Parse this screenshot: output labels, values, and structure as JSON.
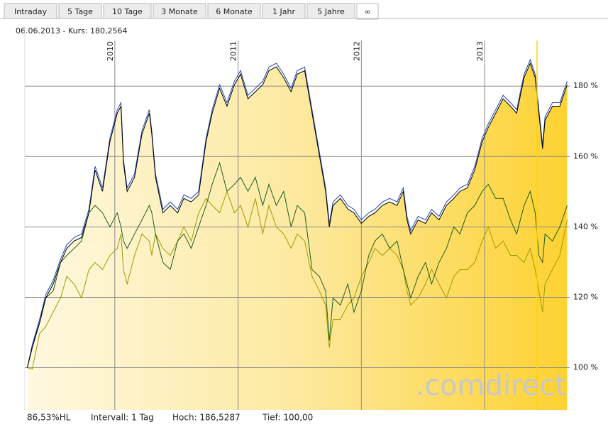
{
  "tabs": [
    "Intraday",
    "5 Tage",
    "10 Tage",
    "3 Monate",
    "6 Monate",
    "1 Jahr",
    "5 Jahre",
    "∞"
  ],
  "active_tab": 7,
  "header": "06.06.2013  -  Kurs: 180,2564",
  "footer": [
    "86,53%HL",
    "Intervall: 1 Tag",
    "Hoch: 186,5287",
    "Tief:  100,00"
  ],
  "watermark": ".comdirect",
  "chart_data": {
    "type": "line",
    "x": [
      2009.29,
      2009.33,
      2009.39,
      2009.44,
      2009.5,
      2009.56,
      2009.61,
      2009.67,
      2009.73,
      2009.79,
      2009.84,
      2009.9,
      2009.96,
      2010.02,
      2010.05,
      2010.07,
      2010.1,
      2010.16,
      2010.22,
      2010.28,
      2010.3,
      2010.33,
      2010.39,
      2010.45,
      2010.51,
      2010.56,
      2010.62,
      2010.68,
      2010.74,
      2010.79,
      2010.85,
      2010.91,
      2010.97,
      2011.02,
      2011.08,
      2011.14,
      2011.2,
      2011.25,
      2011.31,
      2011.37,
      2011.43,
      2011.48,
      2011.54,
      2011.6,
      2011.66,
      2011.71,
      2011.74,
      2011.77,
      2011.83,
      2011.89,
      2011.94,
      2012.0,
      2012.06,
      2012.11,
      2012.17,
      2012.23,
      2012.29,
      2012.34,
      2012.37,
      2012.4,
      2012.46,
      2012.52,
      2012.57,
      2012.63,
      2012.69,
      2012.75,
      2012.8,
      2012.86,
      2012.92,
      2012.98,
      2013.03,
      2013.09,
      2013.15,
      2013.21,
      2013.26,
      2013.32,
      2013.37,
      2013.41,
      2013.44,
      2013.47,
      2013.49,
      2013.55,
      2013.61,
      2013.67
    ],
    "series": [
      {
        "color": "#000000",
        "area": true,
        "values": [
          100,
          105.7,
          112.7,
          119.8,
          123.8,
          129.9,
          133.9,
          136,
          137,
          144,
          156.2,
          150.1,
          164.2,
          172.3,
          174.3,
          158.2,
          150.1,
          154.1,
          166.3,
          172.3,
          166.3,
          154.1,
          144,
          146.1,
          144,
          148.1,
          147.1,
          149.1,
          164.2,
          172.3,
          179.4,
          174.3,
          180.4,
          183.4,
          176.4,
          178.4,
          180.4,
          184.4,
          185.5,
          182.4,
          178.4,
          183.4,
          184.4,
          172.3,
          160.2,
          150.1,
          140,
          146.1,
          148.1,
          145.1,
          144,
          141,
          143,
          144,
          146.1,
          147.1,
          146.1,
          150.1,
          142,
          138,
          142,
          141,
          144,
          142,
          146.1,
          148.1,
          150.1,
          151.1,
          156.2,
          164.2,
          168.3,
          172.3,
          176.4,
          174.3,
          172.3,
          182.4,
          186.5,
          182.4,
          172.3,
          162.2,
          170.3,
          174.3,
          174.3,
          180.4
        ]
      },
      {
        "color": "#1f45b0",
        "values": [
          100,
          106.5,
          113.7,
          120.8,
          124.8,
          130.9,
          134.9,
          137,
          138,
          145,
          157.2,
          151.1,
          165.2,
          173.3,
          175.3,
          159.2,
          151.1,
          155.1,
          167.3,
          173.3,
          167.3,
          155.1,
          145,
          147.1,
          145,
          149.1,
          148.1,
          150.1,
          165.2,
          173.3,
          180.4,
          175.3,
          181.4,
          184.4,
          177.4,
          179.4,
          181.4,
          185.4,
          186.5,
          183.4,
          179.4,
          184.4,
          185.4,
          173.3,
          161.2,
          151.1,
          141,
          147.1,
          149.1,
          146.1,
          145,
          142,
          144,
          145,
          147.1,
          148.1,
          147.1,
          151.1,
          143,
          139,
          143,
          142,
          145,
          143,
          147.1,
          149.1,
          151.1,
          152.1,
          157.2,
          165.2,
          169.3,
          173.3,
          177.4,
          175.3,
          173.3,
          183.4,
          187.5,
          183.4,
          173.3,
          163.2,
          171.3,
          175.3,
          175.3,
          181.4
        ]
      },
      {
        "color": "#1b5e20",
        "values": [
          100,
          105.7,
          113.7,
          119.8,
          121.8,
          129.9,
          131.9,
          133.9,
          136,
          144,
          146.1,
          144,
          140,
          144,
          140,
          136,
          133.9,
          138,
          142,
          146.1,
          144,
          138,
          129.9,
          127.9,
          136,
          138,
          133.9,
          140,
          146.1,
          152.1,
          158.2,
          150.1,
          152.1,
          154.1,
          150.1,
          154.1,
          146.1,
          152.1,
          146.1,
          150.1,
          140,
          146.1,
          144,
          127.9,
          125.9,
          121.8,
          107.7,
          119.8,
          117.8,
          123.8,
          115.8,
          121.8,
          131.9,
          136,
          138,
          133.9,
          136,
          127.9,
          123.8,
          119.8,
          125.9,
          129.9,
          123.8,
          129.9,
          133.9,
          140,
          138,
          144,
          146.1,
          150.1,
          152.1,
          148.1,
          148.1,
          142,
          138,
          146.1,
          150.1,
          144,
          131.9,
          129.9,
          138,
          136,
          140,
          146.1
        ]
      },
      {
        "color": "#9e9c00",
        "values": [
          100,
          99.6,
          109.7,
          111.7,
          115.8,
          119.8,
          125.9,
          123.8,
          119.8,
          127.9,
          129.9,
          127.9,
          131.9,
          133.9,
          138,
          127.9,
          123.8,
          131.9,
          138,
          136,
          131.9,
          138,
          133.9,
          131.9,
          136,
          140,
          136,
          144,
          148.1,
          146.1,
          144,
          150.1,
          144,
          146.1,
          140,
          148.1,
          138,
          146.1,
          140,
          138,
          133.9,
          138,
          136,
          125.9,
          121.8,
          117.8,
          105.7,
          113.7,
          113.7,
          117.8,
          119.8,
          125.9,
          129.9,
          133.9,
          131.9,
          133.9,
          131.9,
          127.9,
          121.8,
          117.8,
          119.8,
          123.8,
          127.9,
          123.8,
          119.8,
          125.9,
          127.9,
          127.9,
          129.9,
          136,
          140,
          133.9,
          136,
          131.9,
          131.9,
          129.9,
          133.9,
          127.9,
          121.8,
          115.8,
          123.8,
          127.9,
          131.9,
          142
        ]
      }
    ],
    "xlim": [
      2009.27,
      2013.69
    ],
    "xticks": [
      2010,
      2011,
      2012,
      2013
    ],
    "ylim": [
      88,
      197
    ],
    "yticks": [
      {
        "value": 100,
        "label": "100 %"
      },
      {
        "value": 120,
        "label": "120 %"
      },
      {
        "value": 140,
        "label": "140 %"
      },
      {
        "value": 160,
        "label": "160 %"
      },
      {
        "value": 180,
        "label": "180 %"
      }
    ],
    "grid": true
  }
}
